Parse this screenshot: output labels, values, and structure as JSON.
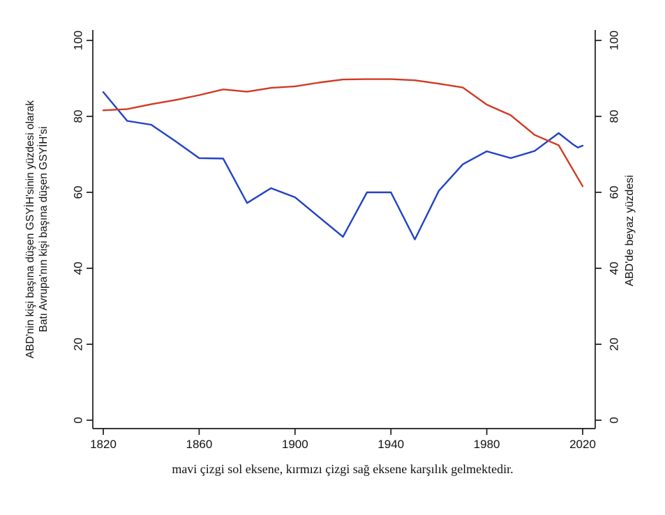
{
  "page": {
    "background": "#ffffff"
  },
  "chart_data": {
    "type": "line",
    "title": "",
    "left_axis_title_lines": [
      "ABD'nin kişi başına düşen GSYİH'sinin yüzdesi olarak",
      "Batı Avrupa'nın kişi başına düşen GSYİH'si"
    ],
    "right_axis_title": "ABD'de beyaz yüzdesi",
    "caption": "mavi çizgi sol eksene, kırmızı çizgi sağ eksene karşılık gelmektedir.",
    "x_ticks": [
      1820,
      1860,
      1900,
      1940,
      1980,
      2020
    ],
    "y_ticks_left": [
      0,
      20,
      40,
      60,
      80,
      100
    ],
    "y_ticks_right": [
      0,
      20,
      40,
      60,
      80,
      100
    ],
    "xlim": [
      1816,
      2025
    ],
    "ylim": [
      0,
      100
    ],
    "grid": false,
    "axis_color": "#1a1a1a",
    "series": [
      {
        "name": "Batı Avrupa'nın kişi başına düşen GSYİH'si (ABD'nin yüzdesi) — mavi çizgi, sol eksen",
        "axis": "left",
        "color": "#2141c6",
        "x": [
          1820,
          1830,
          1840,
          1850,
          1860,
          1870,
          1880,
          1890,
          1900,
          1910,
          1920,
          1930,
          1940,
          1950,
          1960,
          1970,
          1980,
          1990,
          2000,
          2010,
          2016,
          2018,
          2020
        ],
        "values": [
          86.4,
          78.8,
          77.8,
          73.5,
          69.0,
          68.9,
          57.2,
          61.1,
          58.7,
          53.5,
          48.3,
          60.0,
          60.0,
          47.6,
          60.4,
          67.4,
          70.8,
          69.0,
          70.9,
          75.6,
          72.6,
          71.8,
          72.3
        ]
      },
      {
        "name": "ABD'de beyaz yüzdesi — kırmızı çizgi, sağ eksen",
        "axis": "right",
        "color": "#d03b24",
        "x": [
          1820,
          1830,
          1840,
          1850,
          1860,
          1870,
          1880,
          1890,
          1900,
          1910,
          1920,
          1930,
          1940,
          1950,
          1960,
          1970,
          1980,
          1990,
          2000,
          2010,
          2020
        ],
        "values": [
          81.6,
          81.9,
          83.2,
          84.3,
          85.6,
          87.1,
          86.5,
          87.5,
          87.9,
          88.9,
          89.7,
          89.8,
          89.8,
          89.5,
          88.6,
          87.6,
          83.1,
          80.3,
          75.1,
          72.4,
          61.6
        ]
      }
    ]
  }
}
